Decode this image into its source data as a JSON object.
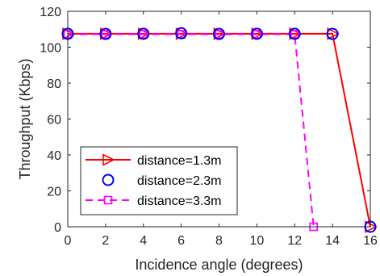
{
  "chart_data": {
    "type": "line",
    "xlabel": "Incidence angle (degrees)",
    "ylabel": "Throughput (Kbps)",
    "xlim": [
      0,
      16
    ],
    "ylim": [
      0,
      120
    ],
    "xticks": [
      0,
      2,
      4,
      6,
      8,
      10,
      12,
      14,
      16
    ],
    "yticks": [
      0,
      20,
      40,
      60,
      80,
      100,
      120
    ],
    "grid": false,
    "legend_position": "bottom-left",
    "series": [
      {
        "name": "distance=1.3m",
        "color": "#ff0000",
        "marker": "triangle-right",
        "dash": "solid",
        "x": [
          0,
          2,
          4,
          6,
          8,
          10,
          12,
          14,
          16
        ],
        "y": [
          107.5,
          107.5,
          107.5,
          107.5,
          107.5,
          107.5,
          107.5,
          107.5,
          0
        ]
      },
      {
        "name": "distance=2.3m",
        "color": "#0000ff",
        "marker": "circle",
        "dash": "none",
        "x": [
          0,
          2,
          4,
          6,
          8,
          10,
          12,
          14,
          16
        ],
        "y": [
          107.5,
          107.4,
          107.5,
          107.8,
          107.4,
          107.5,
          107.5,
          107.4,
          0
        ]
      },
      {
        "name": "distance=3.3m",
        "color": "#ff00ff",
        "marker": "square",
        "dash": "dashed",
        "x": [
          0,
          2,
          4,
          6,
          8,
          10,
          12,
          13
        ],
        "y": [
          107.2,
          107.2,
          107.2,
          107.2,
          107.2,
          107.2,
          107.2,
          0
        ]
      }
    ]
  }
}
